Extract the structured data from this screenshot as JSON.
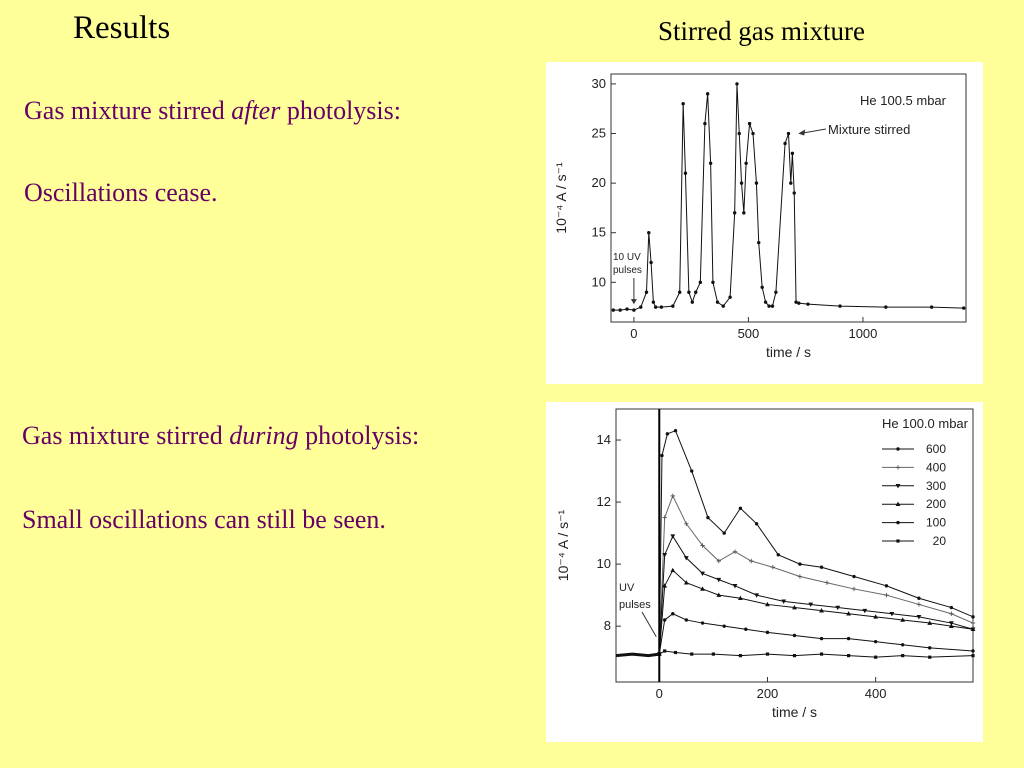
{
  "slide": {
    "title": "Results",
    "subtitle": "Stirred gas mixture",
    "after_line1_pre": "Gas mixture stirred ",
    "after_line1_em": "after",
    "after_line1_post": " photolysis:",
    "after_line2": "Oscillations cease.",
    "during_line1_pre": "Gas mixture stirred ",
    "during_line1_em": "during",
    "during_line1_post": " photolysis:",
    "during_line2": "Small oscillations can still be seen."
  },
  "chart_data": [
    {
      "type": "line",
      "title": "He 100.5 mbar",
      "xlabel": "time / s",
      "ylabel": "10⁻⁴ A / s⁻¹",
      "xlim": [
        -100,
        1450
      ],
      "ylim": [
        6,
        31
      ],
      "xticks": [
        0,
        500,
        1000
      ],
      "yticks": [
        10,
        15,
        20,
        25,
        30
      ],
      "annotations": [
        {
          "text": "Mixture stirred",
          "x": 700,
          "y": 25
        },
        {
          "text": "10 UV",
          "text2": "pulses",
          "x": 0,
          "y": 7.5
        }
      ],
      "series": [
        {
          "x": [
            -90,
            -60,
            -30,
            0,
            30,
            55,
            65,
            75,
            85,
            95,
            120,
            170,
            200,
            215,
            225,
            240,
            255,
            270,
            290,
            310,
            322,
            335,
            345,
            365,
            390,
            420,
            440,
            450,
            460,
            470,
            480,
            490,
            505,
            520,
            535,
            545,
            560,
            575,
            590,
            605,
            620,
            660,
            675,
            685,
            692,
            700,
            708,
            720,
            760,
            900,
            1100,
            1300,
            1440
          ],
          "y": [
            7.2,
            7.2,
            7.3,
            7.2,
            7.5,
            9,
            15,
            12,
            8,
            7.5,
            7.5,
            7.6,
            9,
            28,
            21,
            9,
            8,
            9,
            10,
            26,
            29,
            22,
            10,
            8,
            7.6,
            8.5,
            17,
            30,
            25,
            20,
            17,
            22,
            26,
            25,
            20,
            14,
            9.5,
            8,
            7.6,
            7.6,
            9,
            24,
            25,
            20,
            23,
            19,
            8,
            7.9,
            7.8,
            7.6,
            7.5,
            7.5,
            7.4
          ]
        }
      ]
    },
    {
      "type": "line",
      "title": "He 100.0 mbar",
      "xlabel": "time / s",
      "ylabel": "10⁻⁴ A / s⁻¹",
      "xlim": [
        -80,
        580
      ],
      "ylim": [
        6.2,
        15
      ],
      "xticks": [
        0,
        200,
        400
      ],
      "yticks": [
        8,
        10,
        12,
        14
      ],
      "annotations": [
        {
          "text": "UV",
          "text2": "pulses",
          "x": 0,
          "y": 7.4
        }
      ],
      "baseline": {
        "x": [
          -80,
          -50,
          -20,
          0
        ],
        "y": [
          7.05,
          7.1,
          7.05,
          7.1
        ]
      },
      "series": [
        {
          "name": "600",
          "x": [
            0,
            5,
            15,
            30,
            60,
            90,
            120,
            150,
            180,
            220,
            260,
            300,
            360,
            420,
            480,
            540,
            580
          ],
          "y": [
            7.1,
            13.5,
            14.2,
            14.3,
            13,
            11.5,
            11,
            11.8,
            11.3,
            10.3,
            10,
            9.9,
            9.6,
            9.3,
            8.9,
            8.6,
            8.3
          ]
        },
        {
          "name": "400",
          "x": [
            0,
            10,
            25,
            50,
            80,
            110,
            140,
            170,
            210,
            260,
            310,
            360,
            420,
            480,
            540,
            580
          ],
          "y": [
            7.1,
            11.5,
            12.2,
            11.3,
            10.6,
            10.1,
            10.4,
            10.1,
            9.9,
            9.6,
            9.4,
            9.2,
            9,
            8.7,
            8.4,
            8.1
          ]
        },
        {
          "name": "300",
          "x": [
            0,
            10,
            25,
            50,
            80,
            110,
            140,
            180,
            230,
            280,
            330,
            380,
            430,
            480,
            540,
            580
          ],
          "y": [
            7.1,
            10.3,
            10.9,
            10.2,
            9.7,
            9.5,
            9.3,
            9,
            8.8,
            8.7,
            8.6,
            8.5,
            8.4,
            8.3,
            8.1,
            7.9
          ]
        },
        {
          "name": "200",
          "x": [
            0,
            10,
            25,
            50,
            80,
            110,
            150,
            200,
            250,
            300,
            350,
            400,
            450,
            500,
            540,
            580
          ],
          "y": [
            7.1,
            9.3,
            9.8,
            9.4,
            9.2,
            9,
            8.9,
            8.7,
            8.6,
            8.5,
            8.4,
            8.3,
            8.2,
            8.1,
            8,
            7.9
          ]
        },
        {
          "name": "100",
          "x": [
            0,
            10,
            25,
            50,
            80,
            120,
            160,
            200,
            250,
            300,
            350,
            400,
            450,
            500,
            580
          ],
          "y": [
            7.1,
            8.2,
            8.4,
            8.2,
            8.1,
            8,
            7.9,
            7.8,
            7.7,
            7.6,
            7.6,
            7.5,
            7.4,
            7.3,
            7.2
          ]
        },
        {
          "name": "20",
          "x": [
            0,
            10,
            30,
            60,
            100,
            150,
            200,
            250,
            300,
            350,
            400,
            450,
            500,
            580
          ],
          "y": [
            7.1,
            7.2,
            7.15,
            7.1,
            7.1,
            7.05,
            7.1,
            7.05,
            7.1,
            7.05,
            7,
            7.05,
            7,
            7.05
          ]
        }
      ]
    }
  ]
}
